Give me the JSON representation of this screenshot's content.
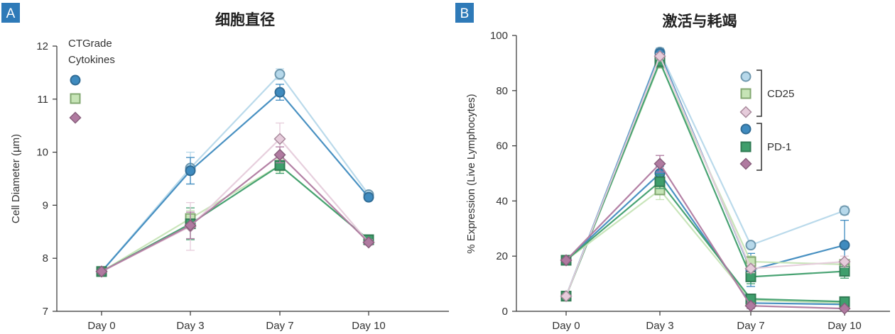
{
  "chart_data": [
    {
      "panel": "A",
      "type": "line",
      "title": "细胞直径",
      "xlabel": "",
      "ylabel": "Cell Diameter (µm)",
      "categories": [
        "Day 0",
        "Day 3",
        "Day 7",
        "Day 10"
      ],
      "ylim": [
        7,
        12
      ],
      "yticks": [
        7,
        8,
        9,
        10,
        11,
        12
      ],
      "legend_title": [
        "CTGrade",
        "Cytokines"
      ],
      "legend_position": "top-left",
      "series": [
        {
          "marker": "circle",
          "style": "open",
          "color": "#8ec3df",
          "values": [
            7.75,
            9.7,
            11.47,
            9.2
          ],
          "errors": [
            0,
            0.3,
            0.1,
            0.05
          ]
        },
        {
          "marker": "circle",
          "style": "filled",
          "color": "#3f8bbf",
          "values": [
            7.75,
            9.65,
            11.13,
            9.15
          ],
          "errors": [
            0,
            0.25,
            0.15,
            0.05
          ]
        },
        {
          "marker": "square",
          "style": "open",
          "color": "#a7d68f",
          "values": [
            7.75,
            8.75,
            9.75,
            8.35
          ],
          "errors": [
            0,
            0.15,
            0.12,
            0.05
          ]
        },
        {
          "marker": "square",
          "style": "filled",
          "color": "#3f9e6c",
          "values": [
            7.75,
            8.65,
            9.75,
            8.35
          ],
          "errors": [
            0,
            0.3,
            0.15,
            0.05
          ]
        },
        {
          "marker": "diamond",
          "style": "open",
          "color": "#d9b1c8",
          "values": [
            7.75,
            8.6,
            10.25,
            8.3
          ],
          "errors": [
            0,
            0.45,
            0.3,
            0.05
          ]
        },
        {
          "marker": "diamond",
          "style": "filled",
          "color": "#b07aa0",
          "values": [
            7.75,
            8.62,
            9.95,
            8.3
          ],
          "errors": [
            0,
            0.25,
            0.15,
            0.05
          ]
        }
      ]
    },
    {
      "panel": "B",
      "type": "line",
      "title": "激活与耗竭",
      "xlabel": "",
      "ylabel": "% Expression (Live Lymphocytes)",
      "categories": [
        "Day 0",
        "Day 3",
        "Day 7",
        "Day 10"
      ],
      "ylim": [
        0,
        100
      ],
      "yticks": [
        0,
        20,
        40,
        60,
        80,
        100
      ],
      "legend_position": "top-right",
      "legend_groups": [
        "CD25",
        "PD-1"
      ],
      "series": [
        {
          "group": "CD25",
          "marker": "circle",
          "style": "open",
          "color": "#8ec3df",
          "values": [
            5.5,
            94,
            24,
            36.5
          ],
          "errors": [
            0,
            1.5,
            1,
            1.5
          ]
        },
        {
          "group": "CD25",
          "marker": "circle",
          "style": "filled",
          "color": "#3f8bbf",
          "values": [
            5.5,
            93.5,
            15,
            24
          ],
          "errors": [
            0,
            1.5,
            6,
            9
          ]
        },
        {
          "group": "CD25",
          "marker": "square",
          "style": "open",
          "color": "#a7d68f",
          "values": [
            5.5,
            90,
            18,
            17
          ],
          "errors": [
            0,
            1.5,
            2,
            1
          ]
        },
        {
          "group": "CD25",
          "marker": "square",
          "style": "filled",
          "color": "#3f9e6c",
          "values": [
            5.5,
            90.5,
            12.5,
            14.5
          ],
          "errors": [
            0,
            1.5,
            2.5,
            2.5
          ]
        },
        {
          "group": "CD25",
          "marker": "diamond",
          "style": "open",
          "color": "#d9b1c8",
          "values": [
            5.5,
            92.5,
            15.5,
            18
          ],
          "errors": [
            0,
            1,
            1.5,
            2
          ]
        },
        {
          "group": "PD-1",
          "marker": "circle",
          "style": "filled",
          "color": "#3f8bbf",
          "values": [
            18.5,
            50,
            3,
            2.5
          ],
          "errors": [
            0,
            2.5,
            1,
            0.5
          ]
        },
        {
          "group": "PD-1",
          "marker": "square",
          "style": "open",
          "color": "#a7d68f",
          "values": [
            18.5,
            44,
            4,
            3
          ],
          "errors": [
            0,
            3.5,
            1,
            0.5
          ]
        },
        {
          "group": "PD-1",
          "marker": "square",
          "style": "filled",
          "color": "#3f9e6c",
          "values": [
            18.5,
            47,
            4.5,
            3.5
          ],
          "errors": [
            0,
            2.5,
            1,
            0.5
          ]
        },
        {
          "group": "PD-1",
          "marker": "diamond",
          "style": "filled",
          "color": "#b07aa0",
          "values": [
            18.5,
            53.5,
            2,
            1
          ],
          "errors": [
            0,
            3,
            1,
            0.5
          ]
        }
      ]
    }
  ]
}
